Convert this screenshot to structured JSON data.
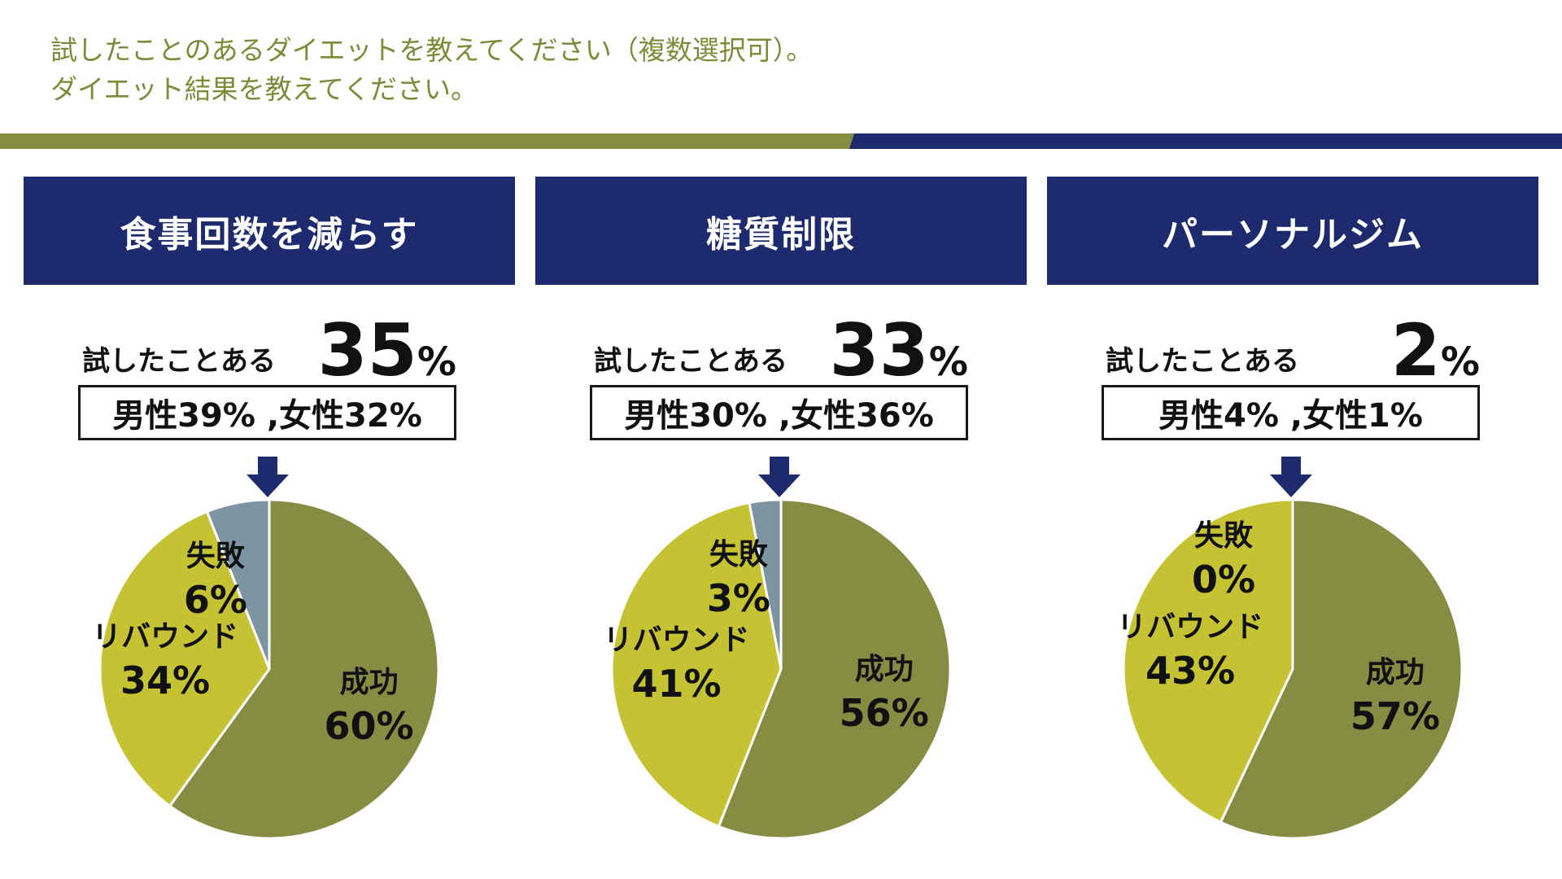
{
  "question": {
    "line1": "試したことのあるダイエットを教えてください（複数選択可）。",
    "line2": "ダイエット結果を教えてください。"
  },
  "colors": {
    "navy": "#1d2a6e",
    "olive": "#878c43",
    "success": "#878c43",
    "rebound": "#c5c333",
    "fail": "#7d95a3"
  },
  "tried_label": "試したことある",
  "percent_sign": "%",
  "chart_data": [
    {
      "type": "pie",
      "title": "食事回数を減らす",
      "tried_pct": "35",
      "gender_text": "男性39% ,女性32%",
      "slices": [
        {
          "label": "成功",
          "value": 60,
          "text": "60%"
        },
        {
          "label": "リバウンド",
          "value": 34,
          "text": "34%"
        },
        {
          "label": "失敗",
          "value": 6,
          "text": "6%"
        }
      ]
    },
    {
      "type": "pie",
      "title": "糖質制限",
      "tried_pct": "33",
      "gender_text": "男性30% ,女性36%",
      "slices": [
        {
          "label": "成功",
          "value": 56,
          "text": "56%"
        },
        {
          "label": "リバウンド",
          "value": 41,
          "text": "41%"
        },
        {
          "label": "失敗",
          "value": 3,
          "text": "3%"
        }
      ]
    },
    {
      "type": "pie",
      "title": "パーソナルジム",
      "tried_pct": "2",
      "gender_text": "男性4% ,女性1%",
      "slices": [
        {
          "label": "成功",
          "value": 57,
          "text": "57%"
        },
        {
          "label": "リバウンド",
          "value": 43,
          "text": "43%"
        },
        {
          "label": "失敗",
          "value": 0,
          "text": "0%"
        }
      ]
    }
  ]
}
